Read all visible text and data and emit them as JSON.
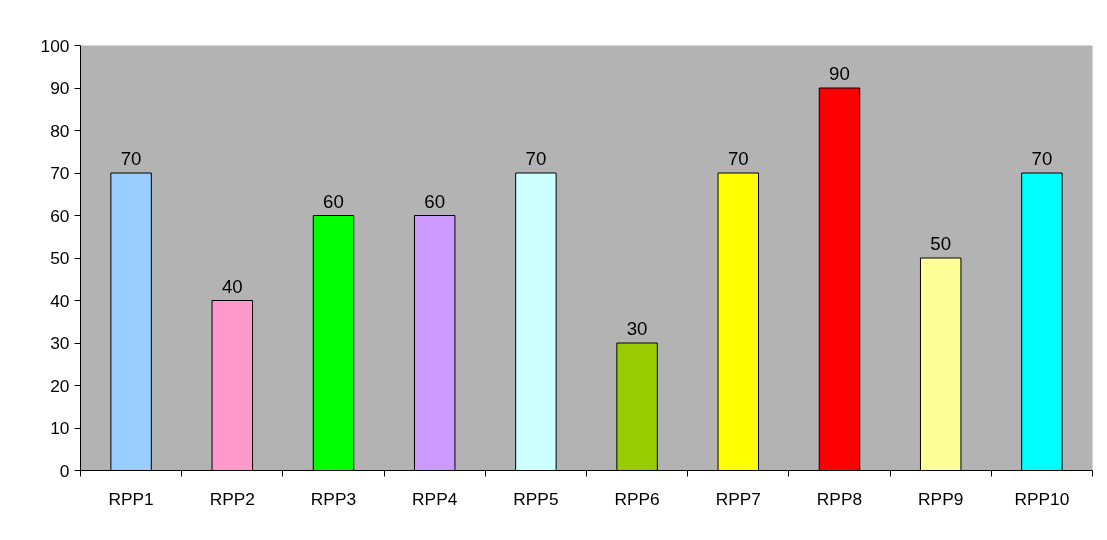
{
  "chart_data": {
    "type": "bar",
    "categories": [
      "RPP1",
      "RPP2",
      "RPP3",
      "RPP4",
      "RPP5",
      "RPP6",
      "RPP7",
      "RPP8",
      "RPP9",
      "RPP10"
    ],
    "values": [
      70,
      40,
      60,
      60,
      70,
      30,
      70,
      90,
      50,
      70
    ],
    "colors": [
      "#99ccff",
      "#ff99cc",
      "#00ff00",
      "#cc99ff",
      "#ccffff",
      "#99cc00",
      "#ffff00",
      "#ff0000",
      "#ffff99",
      "#00ffff"
    ],
    "ylim": [
      0,
      100
    ],
    "yticks": [
      0,
      10,
      20,
      30,
      40,
      50,
      60,
      70,
      80,
      90,
      100
    ],
    "data_labels": true,
    "grid": false
  }
}
